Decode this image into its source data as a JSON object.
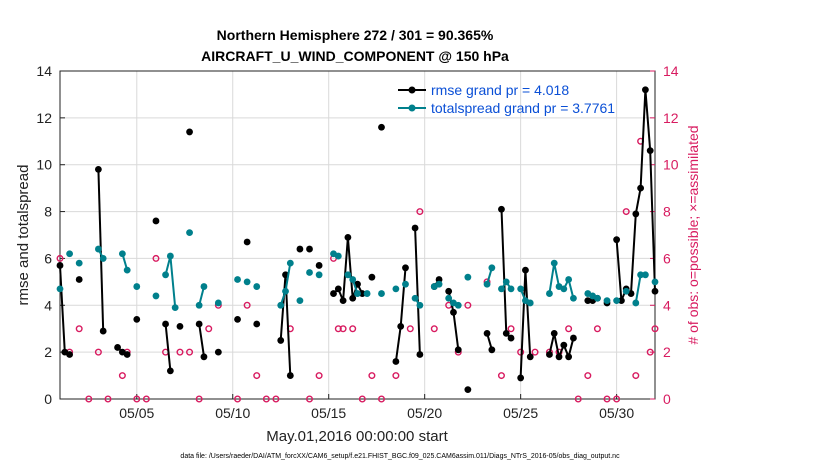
{
  "chart_data": {
    "type": "line",
    "title_line1": "Northern Hemisphere 272 / 301 = 90.365%",
    "title_line2": "AIRCRAFT_U_WIND_COMPONENT @ 150 hPa",
    "ylabel_left": "rmse and totalspread",
    "ylabel_right": "# of obs: o=possible; ×=assimilated",
    "xlabel": "May.01,2016 00:00:00 start",
    "footnote": "data file: /Users/raeder/DAI/ATM_forcXX/CAM6_setup/f.e21.FHIST_BGC.f09_025.CAM6assim.011/Diags_NTrS_2016-05/obs_diag_output.nc",
    "xlim": [
      1,
      32
    ],
    "ylim_left": [
      0,
      14
    ],
    "ylim_right": [
      0,
      14
    ],
    "x_tick_labels": [
      "05/05",
      "05/10",
      "05/15",
      "05/20",
      "05/25",
      "05/30"
    ],
    "x_tick_values": [
      5,
      10,
      15,
      20,
      25,
      30
    ],
    "y_ticks_left": [
      0,
      2,
      4,
      6,
      8,
      10,
      12,
      14
    ],
    "y_ticks_right": [
      0,
      2,
      4,
      6,
      8,
      10,
      12,
      14
    ],
    "grid": true,
    "legend_position": "top-right",
    "series": [
      {
        "name": "rmse grand pr = 4.018",
        "color": "#000000",
        "points": [
          [
            1.0,
            5.7
          ],
          [
            1.25,
            2.0
          ],
          [
            1.5,
            1.9
          ],
          [
            2.0,
            5.1
          ],
          [
            3.0,
            9.8
          ],
          [
            3.25,
            2.9
          ],
          [
            4.0,
            2.2
          ],
          [
            4.25,
            2.0
          ],
          [
            4.5,
            1.9
          ],
          [
            5.0,
            3.4
          ],
          [
            6.0,
            7.6
          ],
          [
            6.5,
            3.2
          ],
          [
            6.75,
            1.2
          ],
          [
            7.25,
            3.1
          ],
          [
            7.75,
            11.4
          ],
          [
            8.25,
            3.2
          ],
          [
            8.5,
            1.8
          ],
          [
            9.25,
            2.0
          ],
          [
            10.25,
            3.4
          ],
          [
            10.75,
            6.7
          ],
          [
            11.25,
            3.2
          ],
          [
            12.5,
            2.5
          ],
          [
            12.75,
            5.3
          ],
          [
            13.0,
            1.0
          ],
          [
            13.5,
            6.4
          ],
          [
            14.0,
            6.4
          ],
          [
            14.5,
            5.7
          ],
          [
            15.25,
            4.5
          ],
          [
            15.5,
            4.7
          ],
          [
            15.75,
            4.2
          ],
          [
            16.0,
            6.9
          ],
          [
            16.25,
            4.3
          ],
          [
            16.5,
            4.9
          ],
          [
            16.75,
            4.5
          ],
          [
            17.25,
            5.2
          ],
          [
            17.75,
            11.6
          ],
          [
            18.5,
            1.6
          ],
          [
            18.75,
            3.1
          ],
          [
            19.0,
            5.6
          ],
          [
            19.5,
            7.3
          ],
          [
            19.75,
            1.9
          ],
          [
            20.5,
            4.8
          ],
          [
            20.75,
            5.1
          ],
          [
            21.25,
            4.6
          ],
          [
            21.5,
            3.7
          ],
          [
            21.75,
            2.1
          ],
          [
            22.25,
            0.4
          ],
          [
            23.25,
            2.8
          ],
          [
            23.5,
            2.1
          ],
          [
            24.0,
            8.1
          ],
          [
            24.25,
            2.8
          ],
          [
            24.5,
            2.6
          ],
          [
            25.0,
            0.9
          ],
          [
            25.25,
            5.5
          ],
          [
            25.5,
            1.8
          ],
          [
            26.5,
            1.9
          ],
          [
            26.75,
            2.8
          ],
          [
            27.0,
            1.8
          ],
          [
            27.25,
            2.3
          ],
          [
            27.5,
            1.8
          ],
          [
            27.75,
            2.6
          ],
          [
            28.5,
            4.2
          ],
          [
            28.75,
            4.2
          ],
          [
            29.0,
            4.3
          ],
          [
            29.5,
            4.1
          ],
          [
            30.0,
            6.8
          ],
          [
            30.25,
            4.2
          ],
          [
            30.5,
            4.7
          ],
          [
            30.75,
            4.5
          ],
          [
            31.0,
            7.9
          ],
          [
            31.25,
            9.0
          ],
          [
            31.5,
            13.2
          ],
          [
            31.75,
            10.6
          ],
          [
            32.0,
            4.6
          ]
        ]
      },
      {
        "name": "totalspread grand pr = 3.7761",
        "color": "#00808c",
        "points": [
          [
            1.0,
            4.7
          ],
          [
            1.5,
            6.2
          ],
          [
            2.0,
            5.8
          ],
          [
            3.0,
            6.4
          ],
          [
            3.25,
            6.0
          ],
          [
            4.25,
            6.2
          ],
          [
            4.5,
            5.5
          ],
          [
            5.0,
            4.8
          ],
          [
            6.0,
            4.4
          ],
          [
            6.5,
            5.3
          ],
          [
            6.75,
            6.1
          ],
          [
            7.0,
            3.9
          ],
          [
            7.75,
            7.1
          ],
          [
            8.25,
            4.0
          ],
          [
            8.5,
            4.8
          ],
          [
            9.25,
            4.1
          ],
          [
            10.25,
            5.1
          ],
          [
            10.75,
            5.0
          ],
          [
            11.25,
            4.8
          ],
          [
            12.5,
            4.0
          ],
          [
            12.75,
            4.6
          ],
          [
            13.0,
            5.8
          ],
          [
            13.5,
            4.2
          ],
          [
            14.0,
            5.4
          ],
          [
            14.5,
            5.3
          ],
          [
            15.25,
            6.2
          ],
          [
            15.5,
            6.1
          ],
          [
            16.0,
            5.3
          ],
          [
            16.25,
            5.1
          ],
          [
            16.5,
            4.5
          ],
          [
            17.0,
            4.5
          ],
          [
            17.75,
            4.5
          ],
          [
            18.5,
            4.7
          ],
          [
            19.0,
            4.9
          ],
          [
            19.5,
            4.3
          ],
          [
            19.75,
            4.0
          ],
          [
            20.5,
            4.8
          ],
          [
            20.75,
            4.9
          ],
          [
            21.25,
            4.3
          ],
          [
            21.5,
            4.1
          ],
          [
            21.75,
            4.0
          ],
          [
            22.25,
            5.2
          ],
          [
            23.25,
            4.9
          ],
          [
            23.5,
            5.6
          ],
          [
            24.0,
            4.7
          ],
          [
            24.25,
            5.0
          ],
          [
            24.5,
            4.7
          ],
          [
            25.0,
            4.7
          ],
          [
            25.25,
            4.2
          ],
          [
            25.5,
            4.1
          ],
          [
            26.5,
            4.5
          ],
          [
            26.75,
            5.8
          ],
          [
            27.0,
            4.8
          ],
          [
            27.25,
            4.7
          ],
          [
            27.5,
            5.1
          ],
          [
            27.75,
            4.3
          ],
          [
            28.5,
            4.5
          ],
          [
            28.75,
            4.4
          ],
          [
            29.0,
            4.3
          ],
          [
            29.5,
            4.2
          ],
          [
            30.0,
            4.2
          ],
          [
            30.5,
            4.6
          ],
          [
            31.0,
            4.1
          ],
          [
            31.25,
            5.3
          ],
          [
            31.5,
            5.3
          ],
          [
            32.0,
            5.0
          ]
        ]
      }
    ],
    "possible_obs": [
      [
        1.0,
        6.0
      ],
      [
        1.5,
        2.0
      ],
      [
        2.0,
        3.0
      ],
      [
        2.5,
        0
      ],
      [
        3.0,
        2.0
      ],
      [
        3.5,
        0
      ],
      [
        4.25,
        1.0
      ],
      [
        4.5,
        2.0
      ],
      [
        5.0,
        0
      ],
      [
        5.5,
        0
      ],
      [
        6.0,
        6.0
      ],
      [
        6.5,
        2.0
      ],
      [
        7.25,
        2.0
      ],
      [
        7.75,
        2.0
      ],
      [
        8.25,
        0
      ],
      [
        8.75,
        3.0
      ],
      [
        9.25,
        4.0
      ],
      [
        10.25,
        0
      ],
      [
        10.75,
        4.0
      ],
      [
        11.25,
        1.0
      ],
      [
        11.75,
        0
      ],
      [
        12.25,
        0
      ],
      [
        13.0,
        3.0
      ],
      [
        14.0,
        0
      ],
      [
        14.5,
        1.0
      ],
      [
        15.25,
        6.0
      ],
      [
        15.5,
        3.0
      ],
      [
        15.75,
        3.0
      ],
      [
        16.25,
        3.0
      ],
      [
        16.75,
        0
      ],
      [
        17.25,
        1.0
      ],
      [
        17.75,
        0
      ],
      [
        18.5,
        1.0
      ],
      [
        19.25,
        3.0
      ],
      [
        19.75,
        8.0
      ],
      [
        20.5,
        3.0
      ],
      [
        21.25,
        4.0
      ],
      [
        21.75,
        2.0
      ],
      [
        22.25,
        4.0
      ],
      [
        23.25,
        5.0
      ],
      [
        24.0,
        1.0
      ],
      [
        24.5,
        3.0
      ],
      [
        25.0,
        2.0
      ],
      [
        25.75,
        2.0
      ],
      [
        26.5,
        2.0
      ],
      [
        27.0,
        2.0
      ],
      [
        27.5,
        3.0
      ],
      [
        28.0,
        0
      ],
      [
        28.5,
        1.0
      ],
      [
        29.0,
        3.0
      ],
      [
        29.5,
        0
      ],
      [
        30.0,
        0
      ],
      [
        30.5,
        8.0
      ],
      [
        31.0,
        1.0
      ],
      [
        31.25,
        11.0
      ],
      [
        31.75,
        2.0
      ],
      [
        32.0,
        3.0
      ]
    ]
  }
}
